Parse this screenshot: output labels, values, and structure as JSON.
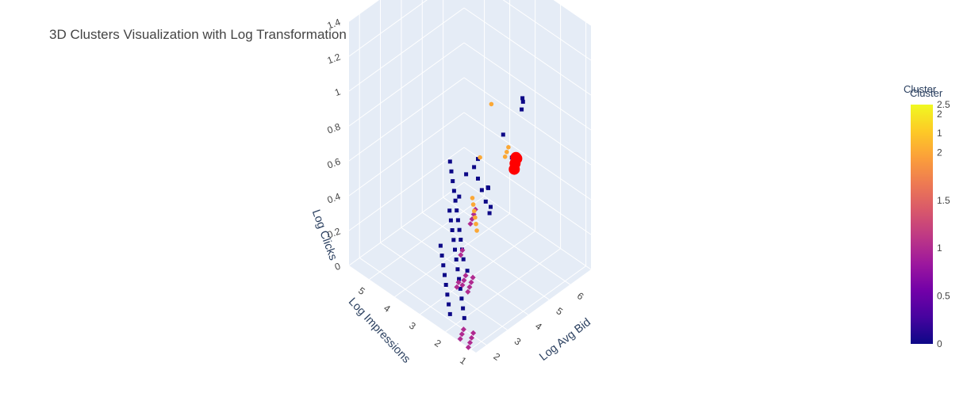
{
  "title": "3D Clusters Visualization with Log Transformation",
  "colors": {
    "scene_bg": "#e5ecf6",
    "grid": "#ffffff",
    "colorscale": [
      "#0d0887",
      "#46039f",
      "#7201a8",
      "#9c179e",
      "#bd3786",
      "#d8576b",
      "#ed7953",
      "#fb9f3a",
      "#fdca26",
      "#f0f921"
    ],
    "centroid": "#ff0000"
  },
  "chart_data": {
    "type": "scatter3d",
    "title": "3D Clusters Visualization with Log Transformation",
    "axes": {
      "x": {
        "label": "Log Avg Bid",
        "range": [
          1.5,
          7
        ],
        "ticks": [
          2,
          3,
          4,
          5,
          6
        ]
      },
      "y": {
        "label": "Log Impressions",
        "range": [
          0.8,
          5.8
        ],
        "ticks": [
          1,
          2,
          3,
          4,
          5
        ]
      },
      "z": {
        "label": "Log Clicks",
        "range": [
          0,
          1.4
        ],
        "ticks": [
          0,
          0.2,
          0.4,
          0.6,
          0.8,
          1,
          1.2,
          1.4
        ]
      }
    },
    "colorbar": {
      "titles": [
        "Cluster",
        "Cluster"
      ],
      "ticks_main": [
        0,
        0.5,
        1,
        1.5,
        2
      ],
      "ticks_overlay": [
        0,
        1,
        2,
        2.5
      ]
    },
    "series": [
      {
        "cluster": 0,
        "points": [
          [
            2.3,
            1.8,
            0.3
          ],
          [
            2.6,
            2.2,
            0.3
          ],
          [
            2.9,
            2.5,
            0.3
          ],
          [
            3.2,
            2.8,
            0.3
          ],
          [
            3.5,
            3.1,
            0.3
          ],
          [
            3.8,
            3.4,
            0.3
          ],
          [
            4.1,
            3.7,
            0.3
          ],
          [
            4.4,
            4.0,
            0.3
          ],
          [
            4.7,
            4.3,
            0.3
          ],
          [
            5.0,
            4.6,
            0.3
          ],
          [
            5.3,
            4.9,
            0.3
          ],
          [
            5.6,
            5.2,
            0.3
          ],
          [
            2.4,
            2.0,
            0.0
          ],
          [
            2.7,
            2.3,
            0.0
          ],
          [
            3.0,
            2.6,
            0.0
          ],
          [
            3.3,
            2.9,
            0.0
          ],
          [
            3.6,
            3.2,
            0.0
          ],
          [
            3.9,
            3.5,
            0.0
          ],
          [
            4.2,
            3.8,
            0.0
          ],
          [
            4.5,
            4.1,
            0.0
          ],
          [
            4.8,
            4.4,
            0.0
          ],
          [
            5.1,
            4.7,
            0.0
          ],
          [
            5.4,
            5.0,
            0.0
          ],
          [
            5.7,
            5.3,
            0.0
          ],
          [
            2.2,
            2.4,
            0.0
          ],
          [
            2.5,
            2.7,
            0.0
          ],
          [
            2.8,
            3.0,
            0.0
          ],
          [
            3.1,
            3.3,
            0.0
          ],
          [
            3.4,
            3.6,
            0.0
          ],
          [
            3.7,
            3.9,
            0.0
          ],
          [
            4.0,
            4.2,
            0.0
          ],
          [
            4.3,
            4.5,
            0.0
          ],
          [
            3.0,
            1.5,
            0.6
          ],
          [
            3.3,
            1.9,
            0.6
          ],
          [
            3.6,
            2.3,
            0.6
          ],
          [
            3.9,
            2.7,
            0.6
          ],
          [
            4.2,
            3.1,
            0.6
          ],
          [
            4.6,
            1.5,
            1.1
          ],
          [
            4.9,
            1.8,
            1.0
          ],
          [
            5.3,
            2.1,
            1.0
          ],
          [
            2.2,
            1.3,
            1.0
          ],
          [
            2.0,
            1.6,
            0.9
          ],
          [
            5.0,
            3.2,
            0.4
          ],
          [
            5.6,
            3.6,
            0.2
          ],
          [
            6.2,
            4.2,
            0.2
          ],
          [
            5.4,
            2.6,
            0.6
          ],
          [
            4.5,
            2.2,
            0.85
          ],
          [
            6.4,
            5.5,
            0.0
          ]
        ]
      },
      {
        "cluster": 1,
        "points": [
          [
            1.6,
            1.2,
            0.3
          ],
          [
            1.8,
            1.3,
            0.3
          ],
          [
            2.0,
            1.4,
            0.3
          ],
          [
            2.2,
            1.5,
            0.3
          ],
          [
            1.7,
            1.5,
            0.3
          ],
          [
            1.9,
            1.6,
            0.3
          ],
          [
            2.1,
            1.7,
            0.3
          ],
          [
            1.8,
            1.8,
            0.25
          ],
          [
            2.0,
            1.9,
            0.25
          ],
          [
            1.5,
            1.1,
            0.0
          ],
          [
            1.7,
            1.2,
            0.0
          ],
          [
            1.9,
            1.3,
            0.0
          ],
          [
            2.1,
            1.4,
            0.0
          ],
          [
            1.6,
            1.5,
            0.0
          ],
          [
            1.8,
            1.6,
            0.0
          ],
          [
            2.0,
            1.7,
            0.0
          ],
          [
            1.6,
            1.1,
            0.7
          ],
          [
            1.8,
            1.2,
            0.7
          ],
          [
            2.0,
            1.3,
            0.7
          ],
          [
            2.2,
            1.4,
            0.7
          ],
          [
            1.5,
            1.4,
            0.5
          ],
          [
            1.7,
            1.5,
            0.5
          ]
        ]
      },
      {
        "cluster": 2,
        "points": [
          [
            2.6,
            1.1,
            1.3
          ],
          [
            2.3,
            1.3,
            1.0
          ],
          [
            3.5,
            1.3,
            0.9
          ],
          [
            3.7,
            1.4,
            0.9
          ],
          [
            3.9,
            1.5,
            0.9
          ],
          [
            3.0,
            2.0,
            0.45
          ],
          [
            3.2,
            2.2,
            0.45
          ],
          [
            3.4,
            2.4,
            0.45
          ],
          [
            3.6,
            2.6,
            0.45
          ],
          [
            3.8,
            2.8,
            0.45
          ],
          [
            4.0,
            3.0,
            0.45
          ]
        ]
      },
      {
        "cluster": "centroid",
        "points": [
          [
            4.1,
            1.4,
            0.8
          ],
          [
            4.2,
            1.45,
            0.82
          ],
          [
            4.0,
            1.35,
            0.78
          ],
          [
            4.3,
            1.5,
            0.8
          ]
        ]
      }
    ]
  }
}
